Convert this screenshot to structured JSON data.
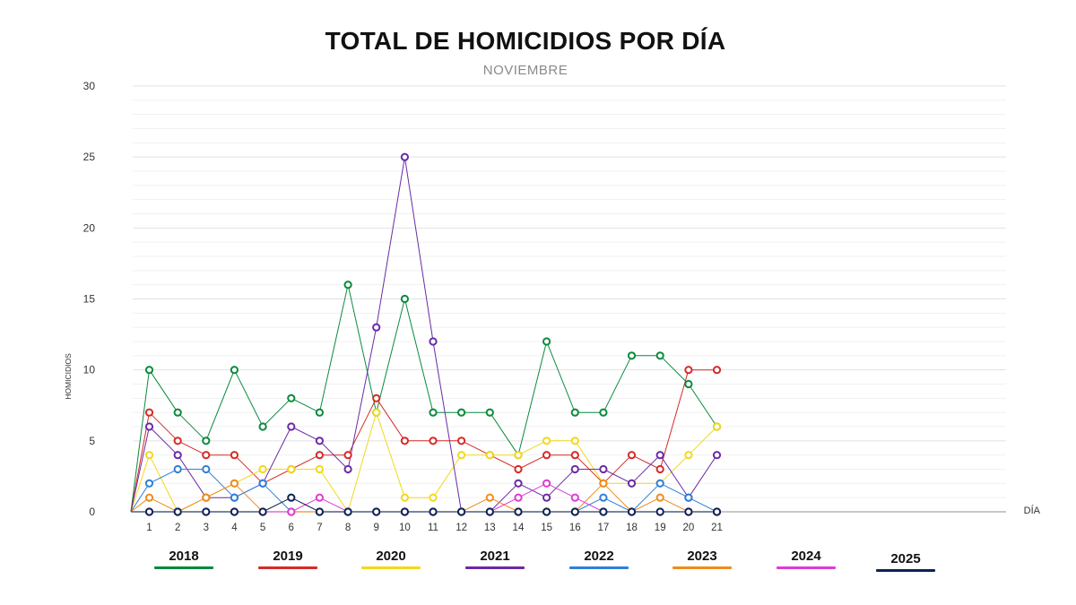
{
  "chart_data": {
    "type": "line",
    "title": "TOTAL DE HOMICIDIOS POR DÍA",
    "subtitle": "NOVIEMBRE",
    "xlabel": "DÍA",
    "ylabel": "HOMICIDIOS",
    "ylim": [
      0,
      30
    ],
    "yticks": [
      0,
      5,
      10,
      15,
      20,
      25,
      30
    ],
    "grid": true,
    "x": [
      1,
      2,
      3,
      4,
      5,
      6,
      7,
      8,
      9,
      10,
      11,
      12,
      13,
      14,
      15,
      16,
      17,
      18,
      19,
      20,
      21
    ],
    "series": [
      {
        "name": "2018",
        "color": "#0a8a3c",
        "values": [
          10,
          7,
          5,
          10,
          6,
          8,
          7,
          16,
          7,
          15,
          7,
          7,
          7,
          4,
          12,
          7,
          7,
          11,
          11,
          9,
          6
        ]
      },
      {
        "name": "2019",
        "color": "#d62b26",
        "values": [
          7,
          5,
          4,
          4,
          2,
          3,
          4,
          4,
          8,
          5,
          5,
          5,
          4,
          3,
          4,
          4,
          2,
          4,
          3,
          10,
          10
        ]
      },
      {
        "name": "2020",
        "color": "#f2d81c",
        "values": [
          4,
          0,
          1,
          2,
          3,
          3,
          3,
          0,
          7,
          1,
          1,
          4,
          4,
          4,
          5,
          5,
          2,
          2,
          2,
          4,
          6
        ]
      },
      {
        "name": "2021",
        "color": "#6a2aa8",
        "values": [
          6,
          4,
          1,
          1,
          2,
          6,
          5,
          3,
          13,
          25,
          12,
          0,
          0,
          2,
          1,
          3,
          3,
          2,
          4,
          1,
          4
        ]
      },
      {
        "name": "2022",
        "color": "#2f80d8",
        "values": [
          2,
          3,
          3,
          1,
          2,
          0,
          0,
          0,
          0,
          0,
          0,
          0,
          0,
          0,
          0,
          0,
          1,
          0,
          2,
          1,
          0
        ]
      },
      {
        "name": "2023",
        "color": "#f08c1a",
        "values": [
          1,
          0,
          1,
          2,
          0,
          0,
          0,
          0,
          0,
          0,
          0,
          0,
          1,
          0,
          0,
          0,
          2,
          0,
          1,
          0,
          0
        ]
      },
      {
        "name": "2024",
        "color": "#e03ad8",
        "values": [
          0,
          0,
          0,
          0,
          0,
          0,
          1,
          0,
          0,
          0,
          0,
          0,
          0,
          1,
          2,
          1,
          0,
          0,
          0,
          0,
          0
        ]
      },
      {
        "name": "2025",
        "color": "#0b2354",
        "values": [
          0,
          0,
          0,
          0,
          0,
          1,
          0,
          0,
          0,
          0,
          0,
          0,
          0,
          0,
          0,
          0,
          0,
          0,
          0,
          0,
          0
        ]
      }
    ]
  }
}
